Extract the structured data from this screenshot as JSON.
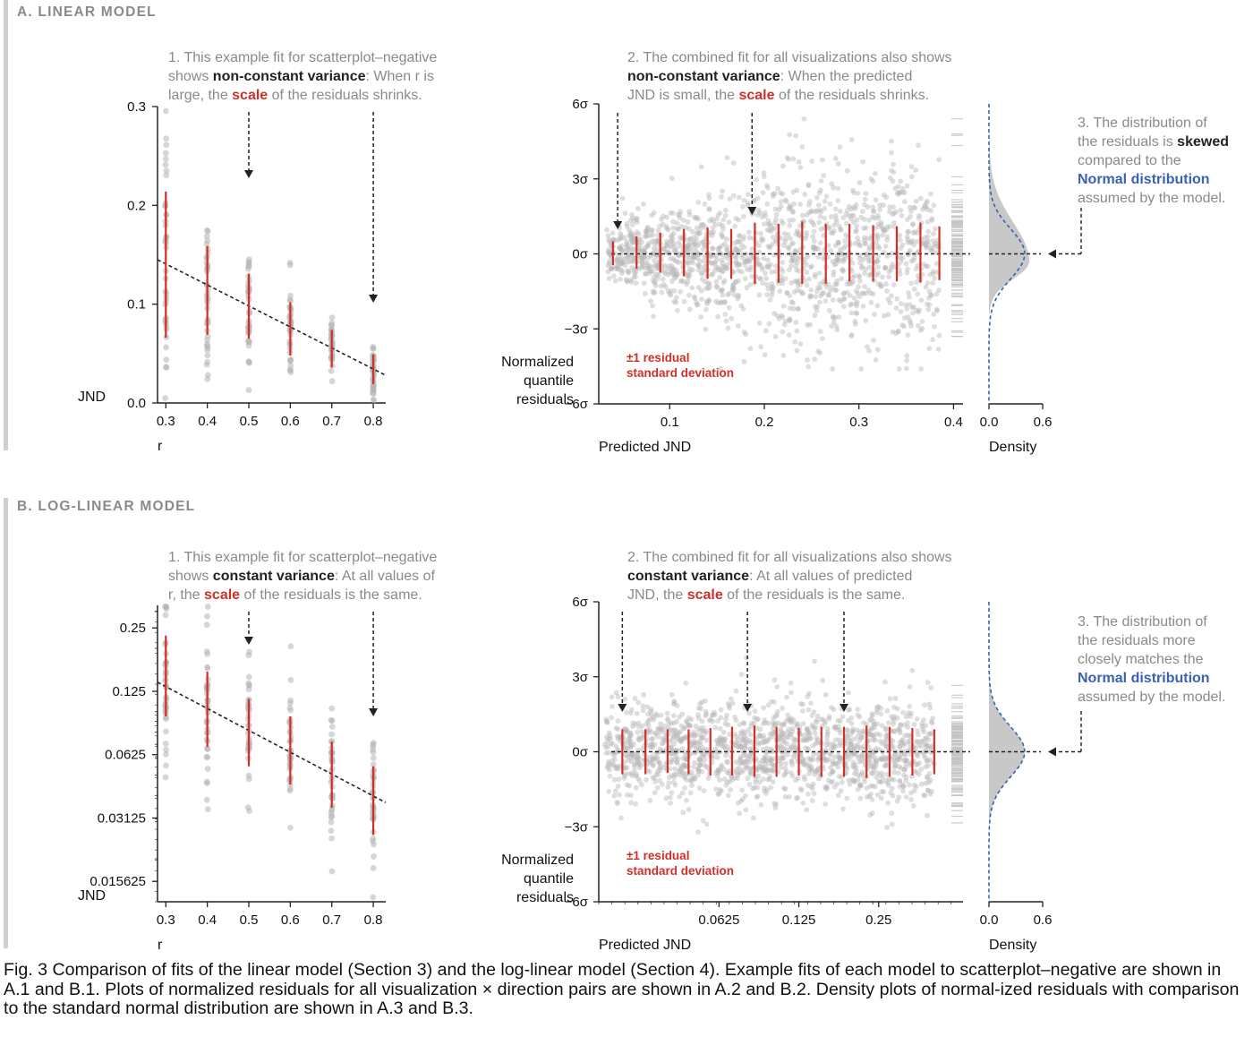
{
  "sections": [
    {
      "id": "A",
      "title": "A. LINEAR MODEL",
      "note1": {
        "line1_pre": "1. This example fit for scatterplot–negative",
        "line2_pre": "shows ",
        "line2_bold": "non-constant variance",
        "line2_post": ": When r is",
        "line3_pre": "large, the ",
        "line3_red": "scale",
        "line3_post": " of the residuals shrinks."
      },
      "note2": {
        "line1_pre": "2. The combined fit for all visualizations also shows",
        "line2_bold": "non-constant variance",
        "line2_post": ": When the predicted",
        "line3_pre": "JND is small, the ",
        "line3_red": "scale",
        "line3_post": " of the residuals shrinks."
      },
      "note3": {
        "line1": "3. The distribution of",
        "line2_pre": "the residuals is ",
        "line2_bold": "skewed",
        "line3": "compared to the",
        "line4_blue": "Normal distribution",
        "line5": "assumed by the model."
      }
    },
    {
      "id": "B",
      "title": "B. LOG-LINEAR MODEL",
      "note1": {
        "line1_pre": "1. This example fit for scatterplot–negative",
        "line2_pre": "shows ",
        "line2_bold": "constant variance",
        "line2_post": ": At all values of",
        "line3_pre": "r, the ",
        "line3_red": "scale",
        "line3_post": " of the residuals is the same."
      },
      "note2": {
        "line1_pre": "2. The combined fit for all visualizations also shows",
        "line2_bold": "constant variance",
        "line2_post": ": At all values of predicted",
        "line3_pre": "JND, the ",
        "line3_red": "scale",
        "line3_post": " of the residuals is the same."
      },
      "note3": {
        "line1": "3. The distribution of",
        "line2_pre": "the residuals more",
        "line2_bold": "",
        "line3": "closely matches the",
        "line4_blue": "Normal distribution",
        "line5": "assumed by the model."
      }
    }
  ],
  "red_label": {
    "line1": "±1 residual",
    "line2": "standard deviation"
  },
  "caption": "Fig. 3 Comparison of fits of the linear model (Section 3) and the log-linear model (Section 4). Example fits of each model to scatterplot–negative are shown in A.1 and B.1. Plots of normalized residuals for all visualization × direction pairs are shown in A.2 and B.2. Density plots of normal-ized residuals with comparison to the standard normal distribution are shown in A.3 and B.3.",
  "colors": {
    "accent_red": "#d0302a",
    "normal_blue": "#3a62b0",
    "points": "#b5b5b5",
    "header_gray": "#8a8a8a"
  },
  "chart_data": [
    {
      "id": "A.1",
      "type": "scatter",
      "xlabel": "r",
      "ylabel": "JND",
      "x_ticks": [
        "0.3",
        "0.4",
        "0.5",
        "0.6",
        "0.7",
        "0.8"
      ],
      "y_ticks": [
        "0.0",
        "0.1",
        "0.2",
        "0.3"
      ],
      "xlim": [
        0.28,
        0.83
      ],
      "ylim": [
        0,
        0.3
      ],
      "groups": [
        {
          "x": 0.3,
          "mean": 0.14,
          "sd": 0.074
        },
        {
          "x": 0.4,
          "mean": 0.114,
          "sd": 0.045
        },
        {
          "x": 0.5,
          "mean": 0.098,
          "sd": 0.033
        },
        {
          "x": 0.6,
          "mean": 0.075,
          "sd": 0.027
        },
        {
          "x": 0.7,
          "mean": 0.055,
          "sd": 0.019
        },
        {
          "x": 0.8,
          "mean": 0.034,
          "sd": 0.015
        }
      ],
      "fit": {
        "x0": 0.28,
        "y0": 0.145,
        "x1": 0.83,
        "y1": 0.028
      }
    },
    {
      "id": "A.2",
      "type": "scatter",
      "xlabel": "Predicted JND",
      "ylabel": "Normalized quantile residuals",
      "x_ticks": [
        "0.1",
        "0.2",
        "0.3",
        "0.4"
      ],
      "y_ticks": [
        "−6σ",
        "−3σ",
        "0σ",
        "3σ",
        "6σ"
      ],
      "xlim": [
        0.025,
        0.41
      ],
      "ylim": [
        -6,
        6
      ],
      "bars": [
        {
          "x": 0.04,
          "lo": -0.45,
          "hi": 0.5
        },
        {
          "x": 0.065,
          "lo": -0.6,
          "hi": 0.7
        },
        {
          "x": 0.09,
          "lo": -0.75,
          "hi": 0.85
        },
        {
          "x": 0.115,
          "lo": -0.9,
          "hi": 1.0
        },
        {
          "x": 0.14,
          "lo": -1.0,
          "hi": 1.05
        },
        {
          "x": 0.165,
          "lo": -1.0,
          "hi": 1.0
        },
        {
          "x": 0.19,
          "lo": -1.2,
          "hi": 1.25
        },
        {
          "x": 0.215,
          "lo": -1.15,
          "hi": 1.2
        },
        {
          "x": 0.24,
          "lo": -1.2,
          "hi": 1.3
        },
        {
          "x": 0.265,
          "lo": -1.2,
          "hi": 1.2
        },
        {
          "x": 0.29,
          "lo": -1.1,
          "hi": 1.2
        },
        {
          "x": 0.315,
          "lo": -1.1,
          "hi": 1.15
        },
        {
          "x": 0.34,
          "lo": -1.1,
          "hi": 1.1
        },
        {
          "x": 0.365,
          "lo": -1.15,
          "hi": 1.25
        },
        {
          "x": 0.385,
          "lo": -1.05,
          "hi": 1.1
        }
      ]
    },
    {
      "id": "A.3",
      "type": "area",
      "xlabel": "Density",
      "x_ticks": [
        "0.0",
        "0.6"
      ],
      "xlim": [
        0,
        0.6
      ],
      "ylim": [
        -6,
        6
      ],
      "skewed": true
    },
    {
      "id": "B.1",
      "type": "scatter",
      "xlabel": "r",
      "ylabel": "JND",
      "x_ticks": [
        "0.3",
        "0.4",
        "0.5",
        "0.6",
        "0.7",
        "0.8"
      ],
      "y_ticks": [
        "0.015625",
        "0.03125",
        "0.0625",
        "0.125",
        "0.25"
      ],
      "xlim": [
        0.28,
        0.83
      ],
      "ylim": [
        0.0125,
        0.32
      ],
      "log_y": true,
      "groups": [
        {
          "x": 0.3,
          "mean": 0.14,
          "lo": 0.095,
          "hi": 0.23
        },
        {
          "x": 0.4,
          "mean": 0.1,
          "lo": 0.068,
          "hi": 0.155
        },
        {
          "x": 0.5,
          "mean": 0.08,
          "lo": 0.055,
          "hi": 0.115
        },
        {
          "x": 0.6,
          "mean": 0.065,
          "lo": 0.045,
          "hi": 0.095
        },
        {
          "x": 0.7,
          "mean": 0.048,
          "lo": 0.035,
          "hi": 0.072
        },
        {
          "x": 0.8,
          "mean": 0.037,
          "lo": 0.026,
          "hi": 0.055
        }
      ],
      "fit": {
        "x0": 0.28,
        "y0": 0.138,
        "x1": 0.83,
        "y1": 0.037
      }
    },
    {
      "id": "B.2",
      "type": "scatter",
      "xlabel": "Predicted JND",
      "ylabel": "Normalized quantile residuals",
      "x_ticks": [
        "0.0625",
        "0.125",
        "0.25"
      ],
      "y_ticks": [
        "−6σ",
        "−3σ",
        "0σ",
        "3σ",
        "6σ"
      ],
      "xlim": [
        0.022,
        0.52
      ],
      "log_x": true,
      "ylim": [
        -6,
        6
      ],
      "bars": [
        {
          "x": 0.027,
          "lo": -0.9,
          "hi": 0.9
        },
        {
          "x": 0.033,
          "lo": -0.9,
          "hi": 0.9
        },
        {
          "x": 0.04,
          "lo": -0.85,
          "hi": 0.9
        },
        {
          "x": 0.048,
          "lo": -0.9,
          "hi": 0.9
        },
        {
          "x": 0.058,
          "lo": -0.95,
          "hi": 0.95
        },
        {
          "x": 0.07,
          "lo": -0.95,
          "hi": 1.0
        },
        {
          "x": 0.085,
          "lo": -1.0,
          "hi": 1.05
        },
        {
          "x": 0.103,
          "lo": -1.0,
          "hi": 1.0
        },
        {
          "x": 0.125,
          "lo": -0.95,
          "hi": 0.95
        },
        {
          "x": 0.152,
          "lo": -1.0,
          "hi": 1.0
        },
        {
          "x": 0.185,
          "lo": -1.0,
          "hi": 1.0
        },
        {
          "x": 0.225,
          "lo": -1.05,
          "hi": 1.05
        },
        {
          "x": 0.275,
          "lo": -1.0,
          "hi": 1.0
        },
        {
          "x": 0.335,
          "lo": -0.95,
          "hi": 0.95
        },
        {
          "x": 0.405,
          "lo": -0.9,
          "hi": 0.9
        }
      ]
    },
    {
      "id": "B.3",
      "type": "area",
      "xlabel": "Density",
      "x_ticks": [
        "0.0",
        "0.6"
      ],
      "xlim": [
        0,
        0.6
      ],
      "ylim": [
        -6,
        6
      ],
      "skewed": false
    }
  ]
}
